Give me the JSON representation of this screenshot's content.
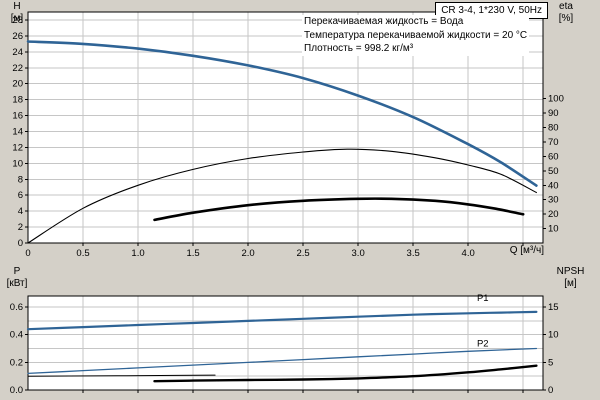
{
  "page": {
    "background": "#d4d0c8"
  },
  "colors": {
    "plot_bg": "#ffffff",
    "grid": "#c6c6c6",
    "axis": "#000000",
    "blue": "#2f6496"
  },
  "header": {
    "model_box": "CR 3-4, 1*230 V, 50Hz",
    "info_lines": [
      "Перекачиваемая жидкость = Вода",
      "Температура перекачиваемой жидкости = 20 °C",
      "Плотность = 998.2 кг/м³"
    ]
  },
  "chart_data": [
    {
      "name": "head-efficiency-chart",
      "type": "line",
      "x_axis": {
        "label": "Q [м³/ч]",
        "range": [
          0,
          4.68
        ],
        "grid_step": 0.5,
        "ticks": [
          0,
          0.5,
          1,
          1.5,
          2,
          2.5,
          3,
          3.5,
          4
        ],
        "tick_labels": [
          "0",
          "0.5",
          "1.0",
          "1.5",
          "2.0",
          "2.5",
          "3.0",
          "3.5",
          "4.0"
        ]
      },
      "y_left": {
        "label": "H [м]",
        "label_lines": [
          "H",
          "[м]"
        ],
        "range": [
          0,
          29
        ],
        "grid_step": 2,
        "ticks": [
          0,
          2,
          4,
          6,
          8,
          10,
          12,
          14,
          16,
          18,
          20,
          22,
          24,
          26,
          28
        ],
        "tick_labels": [
          "0",
          "2",
          "4",
          "6",
          "8",
          "10",
          "12",
          "14",
          "16",
          "18",
          "20",
          "22",
          "24",
          "26",
          "28"
        ]
      },
      "y_right": {
        "label": "eta [%]",
        "label_lines": [
          "eta",
          "[%]"
        ],
        "range": [
          0,
          160
        ],
        "ticks": [
          10,
          20,
          30,
          40,
          50,
          60,
          70,
          80,
          90,
          100
        ],
        "tick_labels": [
          "10",
          "20",
          "30",
          "40",
          "50",
          "60",
          "70",
          "80",
          "90",
          "100"
        ]
      },
      "series": [
        {
          "name": "H-Q",
          "axis": "left",
          "color": "#2f6496",
          "width": 2.6,
          "points": [
            [
              0,
              25.3
            ],
            [
              0.5,
              25.0
            ],
            [
              1,
              24.4
            ],
            [
              1.5,
              23.5
            ],
            [
              2,
              22.3
            ],
            [
              2.5,
              20.7
            ],
            [
              3,
              18.5
            ],
            [
              3.5,
              15.8
            ],
            [
              4,
              12.4
            ],
            [
              4.3,
              10.1
            ],
            [
              4.62,
              7.2
            ]
          ]
        },
        {
          "name": "eta",
          "axis": "right",
          "color": "#000000",
          "width": 1.1,
          "points": [
            [
              0,
              0
            ],
            [
              0.5,
              24
            ],
            [
              1,
              40
            ],
            [
              1.5,
              51
            ],
            [
              2,
              58.5
            ],
            [
              2.5,
              63
            ],
            [
              2.9,
              65
            ],
            [
              3.3,
              63.5
            ],
            [
              3.7,
              59
            ],
            [
              4,
              54
            ],
            [
              4.3,
              47.5
            ],
            [
              4.62,
              35
            ]
          ]
        },
        {
          "name": "eta2",
          "axis": "left",
          "color": "#000000",
          "width": 2.6,
          "points": [
            [
              1.15,
              2.9
            ],
            [
              1.5,
              3.8
            ],
            [
              2,
              4.75
            ],
            [
              2.5,
              5.3
            ],
            [
              3,
              5.55
            ],
            [
              3.3,
              5.55
            ],
            [
              3.7,
              5.3
            ],
            [
              4,
              4.85
            ],
            [
              4.25,
              4.3
            ],
            [
              4.5,
              3.6
            ]
          ]
        }
      ],
      "annotations": []
    },
    {
      "name": "power-npsh-chart",
      "type": "line",
      "x_axis": {
        "label": "",
        "range": [
          0,
          4.68
        ],
        "grid_step": 0.5,
        "ticks": [],
        "tick_labels": []
      },
      "y_left": {
        "label": "P [кВт]",
        "label_lines": [
          "P",
          "[кВт]"
        ],
        "range": [
          0,
          0.68
        ],
        "grid_step": 0.1,
        "ticks": [
          0,
          0.2,
          0.4,
          0.6
        ],
        "tick_labels": [
          "0.0",
          "0.2",
          "0.4",
          "0.6"
        ]
      },
      "y_right": {
        "label": "NPSH [м]",
        "label_lines": [
          "NPSH",
          "[м]"
        ],
        "range": [
          0,
          17
        ],
        "ticks": [
          0,
          5,
          10,
          15
        ],
        "tick_labels": [
          "0",
          "5",
          "10",
          "15"
        ]
      },
      "series": [
        {
          "name": "P1",
          "axis": "left",
          "color": "#2f6496",
          "width": 2.2,
          "points": [
            [
              0,
              0.44
            ],
            [
              0.5,
              0.455
            ],
            [
              1,
              0.47
            ],
            [
              1.5,
              0.485
            ],
            [
              2,
              0.5
            ],
            [
              2.5,
              0.515
            ],
            [
              3,
              0.53
            ],
            [
              3.5,
              0.545
            ],
            [
              4,
              0.555
            ],
            [
              4.3,
              0.56
            ],
            [
              4.62,
              0.565
            ]
          ]
        },
        {
          "name": "P2",
          "axis": "left",
          "color": "#2f6496",
          "width": 1.3,
          "points": [
            [
              0,
              0.12
            ],
            [
              0.5,
              0.14
            ],
            [
              1,
              0.16
            ],
            [
              1.5,
              0.18
            ],
            [
              2,
              0.2
            ],
            [
              2.5,
              0.22
            ],
            [
              3,
              0.24
            ],
            [
              3.5,
              0.26
            ],
            [
              4,
              0.28
            ],
            [
              4.62,
              0.3
            ]
          ]
        },
        {
          "name": "NPSH",
          "axis": "right",
          "color": "#000000",
          "width": 2.4,
          "points": [
            [
              1.15,
              1.6
            ],
            [
              1.5,
              1.7
            ],
            [
              2,
              1.8
            ],
            [
              2.5,
              1.9
            ],
            [
              3,
              2.1
            ],
            [
              3.5,
              2.5
            ],
            [
              4,
              3.2
            ],
            [
              4.3,
              3.75
            ],
            [
              4.62,
              4.4
            ]
          ]
        },
        {
          "name": "aux",
          "axis": "left",
          "color": "#000000",
          "width": 1,
          "points": [
            [
              0,
              0.1
            ],
            [
              0.6,
              0.102
            ],
            [
              1.2,
              0.105
            ],
            [
              1.7,
              0.108
            ]
          ]
        }
      ],
      "annotations": [
        {
          "text": "P1",
          "x": 4.08,
          "y": 0.645,
          "color": "#2f6496"
        },
        {
          "text": "P2",
          "x": 4.08,
          "y": 0.315,
          "color": "#2f6496"
        }
      ]
    }
  ]
}
